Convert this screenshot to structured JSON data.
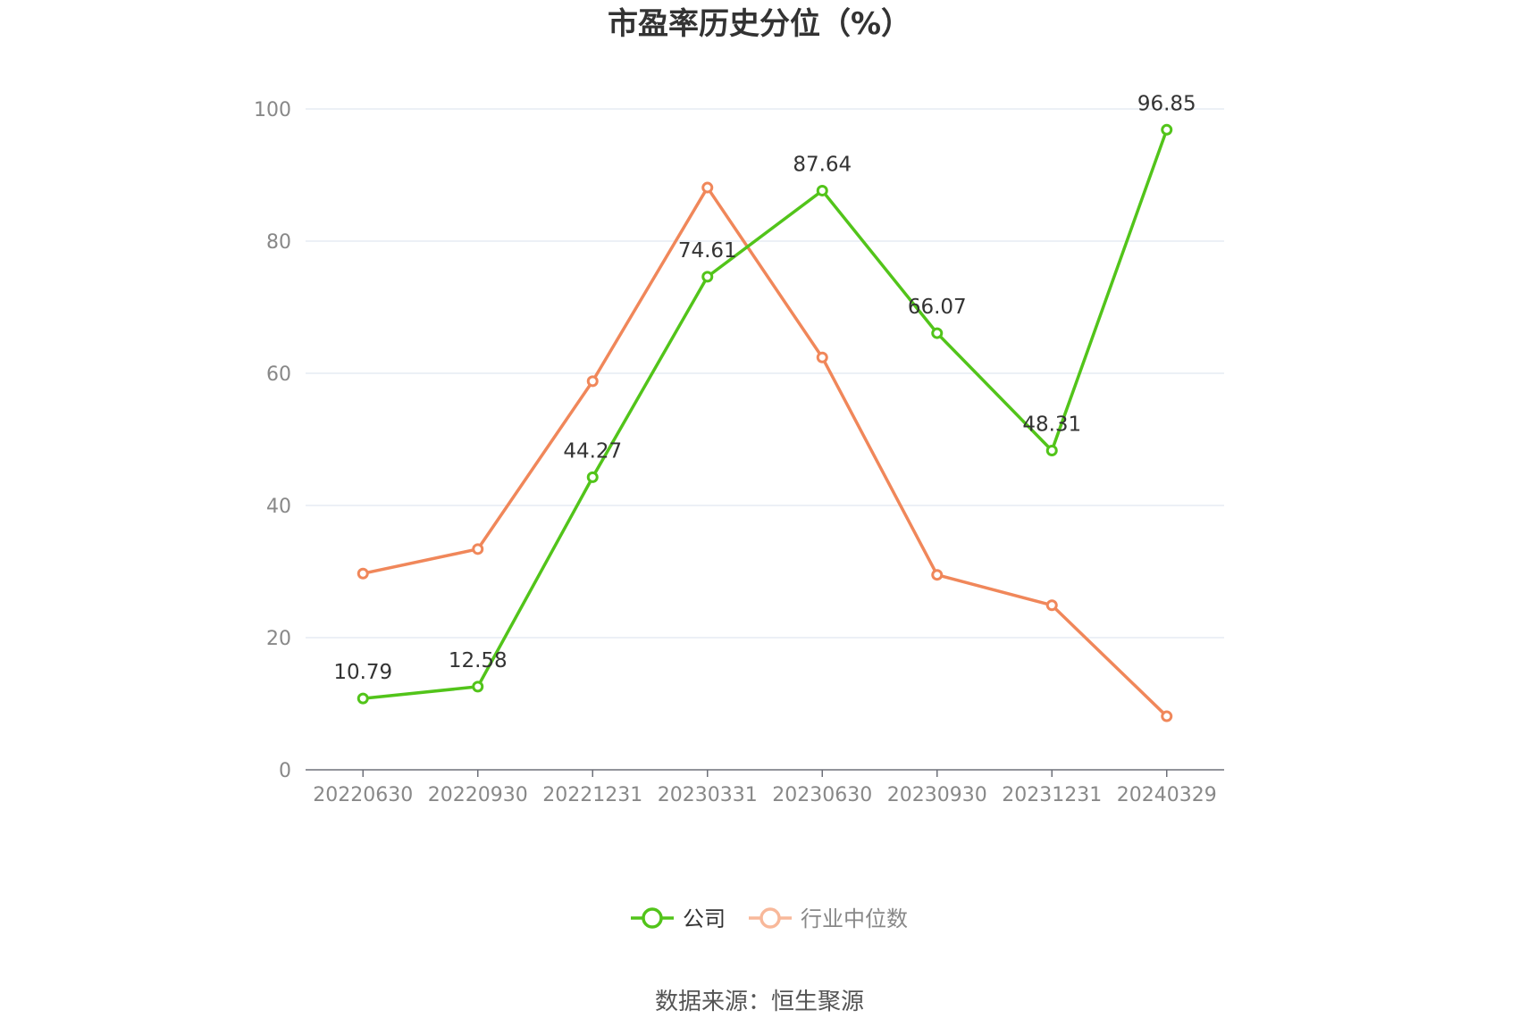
{
  "chart_data": {
    "type": "line",
    "title": "市盈率历史分位（%）",
    "categories": [
      "20220630",
      "20220930",
      "20221231",
      "20230331",
      "20230630",
      "20230930",
      "20231231",
      "20240329"
    ],
    "series": [
      {
        "name": "公司",
        "color": "#52c41a",
        "values": [
          10.79,
          12.58,
          44.27,
          74.61,
          87.64,
          66.07,
          48.31,
          96.85
        ],
        "data_labels": [
          "10.79",
          "12.58",
          "44.27",
          "74.61",
          "87.64",
          "66.07",
          "48.31",
          "96.85"
        ]
      },
      {
        "name": "行业中位数",
        "color": "#f0875a",
        "legend_color": "#f8b89a",
        "values": [
          29.7,
          33.4,
          58.8,
          88.1,
          62.4,
          29.5,
          24.9,
          8.1
        ]
      }
    ],
    "y_ticks": [
      "0",
      "20",
      "40",
      "60",
      "80",
      "100"
    ],
    "ylim": [
      0,
      100
    ],
    "grid": true,
    "legend_position": "bottom-center",
    "source": "数据来源：恒生聚源"
  }
}
